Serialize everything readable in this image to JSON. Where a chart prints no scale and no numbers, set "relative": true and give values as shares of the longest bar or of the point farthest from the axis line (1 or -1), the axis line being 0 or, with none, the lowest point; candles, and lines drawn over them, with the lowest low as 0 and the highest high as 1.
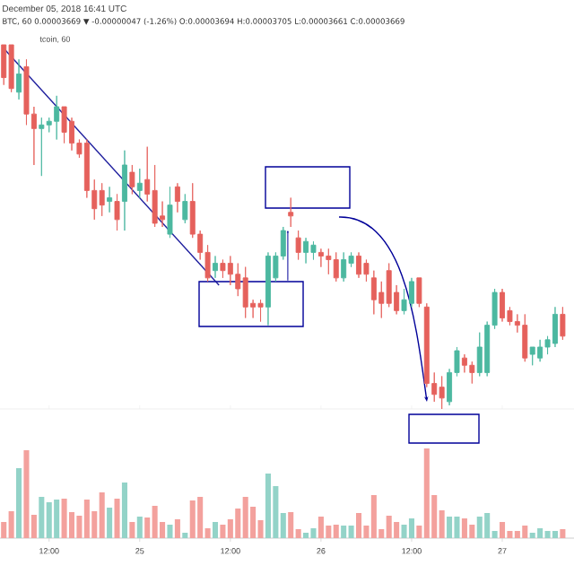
{
  "chart_data": [
    {
      "type": "candlestick",
      "title": "December 05, 2018 16:41 UTC",
      "subtitle": "BTC, 60 0.00003669 ▼ -0.00000047 (-1.26%) O:0.00003694 H:0.00003705 L:0.00003661 C:0.00003669",
      "annotations": [
        "tcoin, 60"
      ],
      "relative": true,
      "tick_labels": false,
      "xlim": [
        "2018-11-24T05:30",
        "2018-11-27T09:30"
      ],
      "xticks": [
        {
          "value": "2018-11-24T12:00",
          "label": null
        },
        {
          "value": "2018-11-25",
          "label": null
        },
        {
          "value": "2018-11-25T12:00",
          "label": null
        },
        {
          "value": "2018-11-26",
          "label": null
        },
        {
          "value": "2018-11-26T12:00",
          "label": null
        },
        {
          "value": "2018-11-27",
          "label": null
        }
      ],
      "x": [
        "2018-11-24T06:00",
        "2018-11-24T07:00",
        "2018-11-24T08:00",
        "2018-11-24T09:00",
        "2018-11-24T10:00",
        "2018-11-24T11:00",
        "2018-11-24T12:00",
        "2018-11-24T13:00",
        "2018-11-24T14:00",
        "2018-11-24T15:00",
        "2018-11-24T16:00",
        "2018-11-24T17:00",
        "2018-11-24T18:00",
        "2018-11-24T19:00",
        "2018-11-24T20:00",
        "2018-11-24T21:00",
        "2018-11-24T22:00",
        "2018-11-24T23:00",
        "2018-11-25T00:00",
        "2018-11-25T01:00",
        "2018-11-25T02:00",
        "2018-11-25T03:00",
        "2018-11-25T04:00",
        "2018-11-25T05:00",
        "2018-11-25T06:00",
        "2018-11-25T07:00",
        "2018-11-25T08:00",
        "2018-11-25T09:00",
        "2018-11-25T10:00",
        "2018-11-25T11:00",
        "2018-11-25T12:00",
        "2018-11-25T13:00",
        "2018-11-25T14:00",
        "2018-11-25T15:00",
        "2018-11-25T16:00",
        "2018-11-25T17:00",
        "2018-11-25T18:00",
        "2018-11-25T19:00",
        "2018-11-25T20:00",
        "2018-11-25T21:00",
        "2018-11-25T22:00",
        "2018-11-25T23:00",
        "2018-11-26T00:00",
        "2018-11-26T01:00",
        "2018-11-26T02:00",
        "2018-11-26T03:00",
        "2018-11-26T04:00",
        "2018-11-26T05:00",
        "2018-11-26T06:00",
        "2018-11-26T07:00",
        "2018-11-26T08:00",
        "2018-11-26T09:00",
        "2018-11-26T10:00",
        "2018-11-26T11:00",
        "2018-11-26T12:00",
        "2018-11-26T13:00",
        "2018-11-26T14:00",
        "2018-11-26T15:00",
        "2018-11-26T16:00",
        "2018-11-26T17:00",
        "2018-11-26T18:00",
        "2018-11-26T19:00",
        "2018-11-26T20:00",
        "2018-11-26T21:00",
        "2018-11-26T22:00",
        "2018-11-26T23:00",
        "2018-11-27T00:00",
        "2018-11-27T01:00",
        "2018-11-27T02:00",
        "2018-11-27T03:00",
        "2018-11-27T04:00",
        "2018-11-27T05:00",
        "2018-11-27T06:00",
        "2018-11-27T07:00",
        "2018-11-27T08:00"
      ],
      "ohlc": [
        [
          1.0,
          1.0,
          0.89,
          0.91
        ],
        [
          1.0,
          1.0,
          0.87,
          0.88
        ],
        [
          0.87,
          0.96,
          0.85,
          0.92
        ],
        [
          0.94,
          0.96,
          0.78,
          0.81
        ],
        [
          0.81,
          0.83,
          0.67,
          0.77
        ],
        [
          0.77,
          0.8,
          0.64,
          0.78
        ],
        [
          0.78,
          0.8,
          0.76,
          0.79
        ],
        [
          0.79,
          0.86,
          0.74,
          0.83
        ],
        [
          0.83,
          0.83,
          0.73,
          0.76
        ],
        [
          0.79,
          0.8,
          0.71,
          0.73
        ],
        [
          0.73,
          0.74,
          0.69,
          0.7
        ],
        [
          0.73,
          0.74,
          0.58,
          0.6
        ],
        [
          0.6,
          0.63,
          0.52,
          0.55
        ],
        [
          0.6,
          0.62,
          0.53,
          0.56
        ],
        [
          0.57,
          0.61,
          0.54,
          0.58
        ],
        [
          0.57,
          0.59,
          0.49,
          0.52
        ],
        [
          0.57,
          0.71,
          0.49,
          0.67
        ],
        [
          0.65,
          0.67,
          0.59,
          0.61
        ],
        [
          0.6,
          0.66,
          0.58,
          0.62
        ],
        [
          0.63,
          0.72,
          0.57,
          0.59
        ],
        [
          0.6,
          0.67,
          0.5,
          0.51
        ],
        [
          0.53,
          0.57,
          0.5,
          0.52
        ],
        [
          0.48,
          0.61,
          0.47,
          0.56
        ],
        [
          0.61,
          0.62,
          0.54,
          0.57
        ],
        [
          0.52,
          0.59,
          0.51,
          0.57
        ],
        [
          0.57,
          0.62,
          0.47,
          0.48
        ],
        [
          0.48,
          0.49,
          0.41,
          0.43
        ],
        [
          0.43,
          0.45,
          0.35,
          0.36
        ],
        [
          0.38,
          0.42,
          0.36,
          0.4
        ],
        [
          0.4,
          0.41,
          0.36,
          0.38
        ],
        [
          0.4,
          0.42,
          0.34,
          0.37
        ],
        [
          0.37,
          0.4,
          0.31,
          0.33
        ],
        [
          0.36,
          0.39,
          0.25,
          0.28
        ],
        [
          0.29,
          0.3,
          0.25,
          0.28
        ],
        [
          0.29,
          0.3,
          0.24,
          0.28
        ],
        [
          0.28,
          0.43,
          0.23,
          0.42
        ],
        [
          0.36,
          0.43,
          0.35,
          0.42
        ],
        [
          0.42,
          0.5,
          0.41,
          0.49
        ],
        [
          0.54,
          0.58,
          0.5,
          0.53
        ],
        [
          0.47,
          0.49,
          0.41,
          0.43
        ],
        [
          0.43,
          0.47,
          0.4,
          0.46
        ],
        [
          0.43,
          0.46,
          0.41,
          0.45
        ],
        [
          0.43,
          0.44,
          0.39,
          0.42
        ],
        [
          0.42,
          0.44,
          0.37,
          0.41
        ],
        [
          0.41,
          0.43,
          0.35,
          0.36
        ],
        [
          0.36,
          0.43,
          0.35,
          0.41
        ],
        [
          0.4,
          0.43,
          0.39,
          0.42
        ],
        [
          0.42,
          0.43,
          0.36,
          0.37
        ],
        [
          0.4,
          0.41,
          0.35,
          0.37
        ],
        [
          0.36,
          0.38,
          0.26,
          0.3
        ],
        [
          0.32,
          0.35,
          0.25,
          0.29
        ],
        [
          0.38,
          0.4,
          0.28,
          0.29
        ],
        [
          0.32,
          0.34,
          0.26,
          0.27
        ],
        [
          0.27,
          0.33,
          0.26,
          0.3
        ],
        [
          0.29,
          0.36,
          0.28,
          0.35
        ],
        [
          0.36,
          0.36,
          0.28,
          0.29
        ],
        [
          0.28,
          0.29,
          0.06,
          0.07
        ],
        [
          0.07,
          0.1,
          0.02,
          0.04
        ],
        [
          0.06,
          0.09,
          0.0,
          0.03
        ],
        [
          0.02,
          0.11,
          0.01,
          0.1
        ],
        [
          0.1,
          0.17,
          0.09,
          0.16
        ],
        [
          0.14,
          0.15,
          0.1,
          0.12
        ],
        [
          0.12,
          0.13,
          0.07,
          0.1
        ],
        [
          0.1,
          0.21,
          0.09,
          0.17
        ],
        [
          0.1,
          0.24,
          0.09,
          0.23
        ],
        [
          0.23,
          0.33,
          0.22,
          0.32
        ],
        [
          0.32,
          0.33,
          0.24,
          0.25
        ],
        [
          0.27,
          0.28,
          0.23,
          0.24
        ],
        [
          0.24,
          0.26,
          0.21,
          0.23
        ],
        [
          0.23,
          0.26,
          0.13,
          0.14
        ],
        [
          0.15,
          0.17,
          0.12,
          0.17
        ],
        [
          0.14,
          0.19,
          0.13,
          0.17
        ],
        [
          0.17,
          0.2,
          0.15,
          0.19
        ],
        [
          0.18,
          0.28,
          0.17,
          0.26
        ],
        [
          0.26,
          0.28,
          0.19,
          0.2
        ]
      ],
      "colors": [
        "#e5615c",
        "#e5615c",
        "#4cb8a0",
        "#e5615c",
        "#e5615c",
        "#4cb8a0",
        "#4cb8a0",
        "#4cb8a0",
        "#e5615c",
        "#e5615c",
        "#e5615c",
        "#e5615c",
        "#e5615c",
        "#e5615c",
        "#4cb8a0",
        "#e5615c",
        "#4cb8a0",
        "#e5615c",
        "#4cb8a0",
        "#e5615c",
        "#e5615c",
        "#e5615c",
        "#4cb8a0",
        "#e5615c",
        "#4cb8a0",
        "#e5615c",
        "#e5615c",
        "#e5615c",
        "#4cb8a0",
        "#e5615c",
        "#e5615c",
        "#e5615c",
        "#e5615c",
        "#e5615c",
        "#e5615c",
        "#4cb8a0",
        "#4cb8a0",
        "#4cb8a0",
        "#e5615c",
        "#e5615c",
        "#4cb8a0",
        "#4cb8a0",
        "#e5615c",
        "#e5615c",
        "#e5615c",
        "#4cb8a0",
        "#4cb8a0",
        "#e5615c",
        "#e5615c",
        "#e5615c",
        "#e5615c",
        "#e5615c",
        "#e5615c",
        "#4cb8a0",
        "#4cb8a0",
        "#e5615c",
        "#e5615c",
        "#e5615c",
        "#e5615c",
        "#4cb8a0",
        "#4cb8a0",
        "#e5615c",
        "#e5615c",
        "#4cb8a0",
        "#4cb8a0",
        "#4cb8a0",
        "#e5615c",
        "#e5615c",
        "#e5615c",
        "#e5615c",
        "#4cb8a0",
        "#4cb8a0",
        "#4cb8a0",
        "#4cb8a0",
        "#e5615c"
      ],
      "series": [
        {
          "type": "line",
          "x": [
            "2018-11-24T06:00",
            "2018-11-25T10:30"
          ],
          "values": [
            0.99,
            0.34
          ],
          "color": "#1f1f9e"
        }
      ]
    },
    {
      "type": "bar",
      "relative": true,
      "tick_labels": "x",
      "xlim": [
        "2018-11-24T05:30",
        "2018-11-27T09:30"
      ],
      "xticks": [
        {
          "value": "2018-11-24T12:00",
          "label": "12:00"
        },
        {
          "value": "2018-11-25",
          "label": "25"
        },
        {
          "value": "2018-11-25T12:00",
          "label": "12:00"
        },
        {
          "value": "2018-11-26",
          "label": "26"
        },
        {
          "value": "2018-11-26T12:00",
          "label": "12:00"
        },
        {
          "value": "2018-11-27",
          "label": "27"
        }
      ],
      "x": [
        "2018-11-24T06:00",
        "2018-11-24T07:00",
        "2018-11-24T08:00",
        "2018-11-24T09:00",
        "2018-11-24T10:00",
        "2018-11-24T11:00",
        "2018-11-24T12:00",
        "2018-11-24T13:00",
        "2018-11-24T14:00",
        "2018-11-24T15:00",
        "2018-11-24T16:00",
        "2018-11-24T17:00",
        "2018-11-24T18:00",
        "2018-11-24T19:00",
        "2018-11-24T20:00",
        "2018-11-24T21:00",
        "2018-11-24T22:00",
        "2018-11-24T23:00",
        "2018-11-25T00:00",
        "2018-11-25T01:00",
        "2018-11-25T02:00",
        "2018-11-25T03:00",
        "2018-11-25T04:00",
        "2018-11-25T05:00",
        "2018-11-25T06:00",
        "2018-11-25T07:00",
        "2018-11-25T08:00",
        "2018-11-25T09:00",
        "2018-11-25T10:00",
        "2018-11-25T11:00",
        "2018-11-25T12:00",
        "2018-11-25T13:00",
        "2018-11-25T14:00",
        "2018-11-25T15:00",
        "2018-11-25T16:00",
        "2018-11-25T17:00",
        "2018-11-25T18:00",
        "2018-11-25T19:00",
        "2018-11-25T20:00",
        "2018-11-25T21:00",
        "2018-11-25T22:00",
        "2018-11-25T23:00",
        "2018-11-26T00:00",
        "2018-11-26T01:00",
        "2018-11-26T02:00",
        "2018-11-26T03:00",
        "2018-11-26T04:00",
        "2018-11-26T05:00",
        "2018-11-26T06:00",
        "2018-11-26T07:00",
        "2018-11-26T08:00",
        "2018-11-26T09:00",
        "2018-11-26T10:00",
        "2018-11-26T11:00",
        "2018-11-26T12:00",
        "2018-11-26T13:00",
        "2018-11-26T14:00",
        "2018-11-26T15:00",
        "2018-11-26T16:00",
        "2018-11-26T17:00",
        "2018-11-26T18:00",
        "2018-11-26T19:00",
        "2018-11-26T20:00",
        "2018-11-26T21:00",
        "2018-11-26T22:00",
        "2018-11-26T23:00",
        "2018-11-27T00:00",
        "2018-11-27T01:00",
        "2018-11-27T02:00",
        "2018-11-27T03:00",
        "2018-11-27T04:00",
        "2018-11-27T05:00",
        "2018-11-27T06:00",
        "2018-11-27T07:00",
        "2018-11-27T08:00"
      ],
      "values": [
        0.18,
        0.3,
        0.78,
        0.98,
        0.26,
        0.46,
        0.4,
        0.43,
        0.44,
        0.29,
        0.25,
        0.43,
        0.3,
        0.51,
        0.34,
        0.44,
        0.62,
        0.18,
        0.24,
        0.23,
        0.36,
        0.18,
        0.15,
        0.21,
        0.06,
        0.42,
        0.46,
        0.11,
        0.18,
        0.15,
        0.21,
        0.33,
        0.46,
        0.35,
        0.2,
        0.72,
        0.58,
        0.28,
        0.29,
        0.1,
        0.06,
        0.11,
        0.24,
        0.14,
        0.15,
        0.14,
        0.14,
        0.28,
        0.14,
        0.48,
        0.1,
        0.25,
        0.18,
        0.15,
        0.22,
        0.14,
        1.0,
        0.48,
        0.31,
        0.24,
        0.24,
        0.22,
        0.15,
        0.24,
        0.28,
        0.08,
        0.18,
        0.08,
        0.08,
        0.14,
        0.06,
        0.11,
        0.08,
        0.08,
        0.1
      ],
      "colors": [
        "#f3a19d",
        "#f3a19d",
        "#93d3c8",
        "#f3a19d",
        "#f3a19d",
        "#93d3c8",
        "#93d3c8",
        "#93d3c8",
        "#f3a19d",
        "#f3a19d",
        "#f3a19d",
        "#f3a19d",
        "#f3a19d",
        "#f3a19d",
        "#93d3c8",
        "#f3a19d",
        "#93d3c8",
        "#f3a19d",
        "#93d3c8",
        "#f3a19d",
        "#f3a19d",
        "#f3a19d",
        "#93d3c8",
        "#f3a19d",
        "#93d3c8",
        "#f3a19d",
        "#f3a19d",
        "#f3a19d",
        "#93d3c8",
        "#f3a19d",
        "#f3a19d",
        "#f3a19d",
        "#f3a19d",
        "#f3a19d",
        "#f3a19d",
        "#93d3c8",
        "#93d3c8",
        "#93d3c8",
        "#f3a19d",
        "#f3a19d",
        "#93d3c8",
        "#93d3c8",
        "#f3a19d",
        "#f3a19d",
        "#f3a19d",
        "#93d3c8",
        "#93d3c8",
        "#f3a19d",
        "#f3a19d",
        "#f3a19d",
        "#f3a19d",
        "#f3a19d",
        "#f3a19d",
        "#93d3c8",
        "#93d3c8",
        "#f3a19d",
        "#f3a19d",
        "#f3a19d",
        "#f3a19d",
        "#93d3c8",
        "#93d3c8",
        "#f3a19d",
        "#f3a19d",
        "#93d3c8",
        "#93d3c8",
        "#93d3c8",
        "#f3a19d",
        "#f3a19d",
        "#f3a19d",
        "#f3a19d",
        "#93d3c8",
        "#93d3c8",
        "#93d3c8",
        "#93d3c8",
        "#f3a19d"
      ]
    }
  ]
}
